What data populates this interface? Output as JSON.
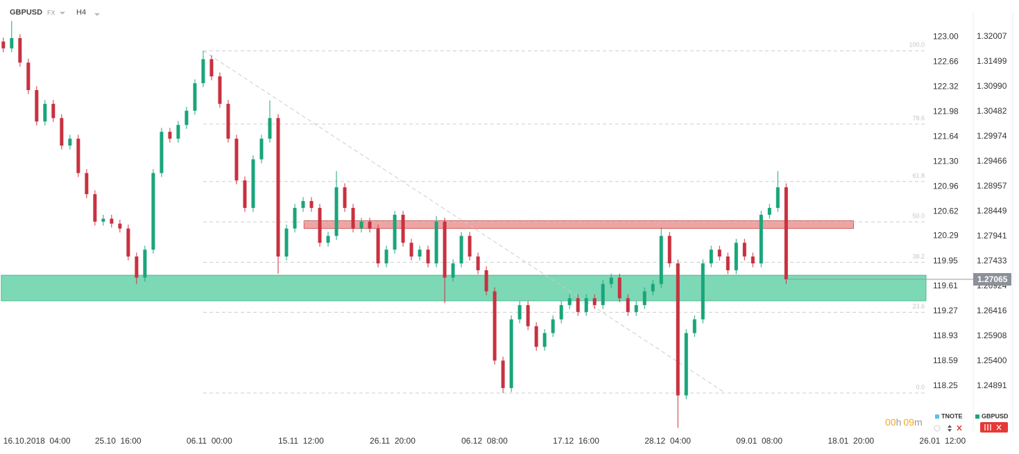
{
  "chart_data": {
    "type": "candlestick",
    "symbol": "GBPUSD",
    "market": "FX",
    "timeframe": "H4",
    "xlim": [
      -0.4,
      110.8
    ],
    "xticks": [
      {
        "value": 0,
        "label": "16.10.2018  04:00"
      },
      {
        "value": 11,
        "label": "25.10  16:00"
      },
      {
        "value": 22,
        "label": "06.11  00:00"
      },
      {
        "value": 33,
        "label": "15.11  12:00"
      },
      {
        "value": 44,
        "label": "26.11  20:00"
      },
      {
        "value": 55,
        "label": "06.12  08:00"
      },
      {
        "value": 66,
        "label": "17.12  16:00"
      },
      {
        "value": 77,
        "label": "28.12  04:00"
      },
      {
        "value": 88,
        "label": "09.01  08:00"
      },
      {
        "value": 99,
        "label": "18.01  20:00"
      },
      {
        "value": 110,
        "label": "26.01  12:00"
      }
    ],
    "ylim": [
      117.655,
      123.312
    ],
    "yticks": [
      {
        "value": 123,
        "label": "123.00"
      },
      122.66,
      122.32,
      121.98,
      121.64,
      {
        "value": 121.3,
        "label": "121.30"
      },
      120.96,
      120.62,
      120.29,
      119.95,
      119.61,
      119.27,
      118.93,
      118.59,
      118.25
    ],
    "y2lim": [
      1.24001,
      1.32473
    ],
    "y2ticks": [
      1.32007,
      1.31499,
      {
        "value": 1.3099,
        "label": "1.30990"
      },
      1.30482,
      1.29974,
      1.29466,
      1.28957,
      1.28449,
      1.27941,
      1.27433,
      1.26924,
      1.26416,
      1.25908,
      {
        "value": 1.254,
        "label": "1.25400"
      },
      1.24891
    ],
    "grid": false,
    "x": [
      0,
      1,
      2,
      3,
      4,
      5,
      6,
      7,
      8,
      9,
      10,
      11,
      12,
      13,
      14,
      15,
      16,
      17,
      18,
      19,
      20,
      21,
      22,
      23,
      24,
      25,
      26,
      27,
      28,
      29,
      30,
      31,
      32,
      33,
      34,
      35,
      36,
      37,
      38,
      39,
      40,
      41,
      42,
      43,
      44,
      45,
      46,
      47,
      48,
      49,
      50,
      51,
      52,
      53,
      54,
      55,
      56,
      57,
      58,
      59,
      60,
      61,
      62,
      63,
      64,
      65,
      66,
      67,
      68,
      69,
      70,
      71,
      72,
      73,
      74,
      75,
      76,
      77,
      78,
      79,
      80,
      81,
      82,
      83,
      84,
      85,
      86,
      87,
      88,
      89,
      90,
      91,
      92,
      93,
      94
    ],
    "series": [
      {
        "name": "GBPUSD",
        "axis": "y2",
        "color": "#1aa57a",
        "up_color": "#1aa57a",
        "down_color": "#c8313f",
        "open": [
          1.3191,
          1.3177,
          1.3198,
          1.3148,
          1.3092,
          1.3028,
          1.3064,
          1.3035,
          1.2979,
          1.2993,
          1.2923,
          1.288,
          1.2824,
          1.283,
          1.282,
          1.281,
          1.2753,
          1.271,
          1.2767,
          1.2923,
          1.3007,
          1.2993,
          1.3021,
          1.305,
          1.3106,
          1.3155,
          1.312,
          1.3064,
          1.2993,
          1.2908,
          1.2852,
          1.2951,
          1.2993,
          1.3035,
          1.2753,
          1.281,
          1.2852,
          1.2866,
          1.2852,
          1.2781,
          1.2795,
          1.2894,
          1.2852,
          1.281,
          1.2824,
          1.281,
          1.2739,
          1.2767,
          1.2838,
          1.2781,
          1.2753,
          1.2767,
          1.2739,
          1.2824,
          1.271,
          1.2739,
          1.2795,
          1.2753,
          1.2725,
          1.2682,
          1.2541,
          1.2485,
          1.2625,
          1.2654,
          1.2611,
          1.2569,
          1.2597,
          1.2625,
          1.2654,
          1.2668,
          1.264,
          1.2668,
          1.2654,
          1.2697,
          1.271,
          1.2668,
          1.264,
          1.2654,
          1.2682,
          1.2697,
          1.2795,
          1.2739,
          1.247,
          1.2597,
          1.2625,
          1.2739,
          1.2767,
          1.2753,
          1.2725,
          1.2781,
          1.2753,
          1.2739,
          1.2838,
          1.2852,
          1.2894
        ],
        "high": [
          1.3199,
          1.3233,
          1.3206,
          1.3156,
          1.31,
          1.3072,
          1.3072,
          1.3043,
          1.3001,
          1.3001,
          1.2931,
          1.2888,
          1.2838,
          1.2838,
          1.2828,
          1.2818,
          1.2761,
          1.2775,
          1.2931,
          1.3015,
          1.3015,
          1.3029,
          1.3058,
          1.3114,
          1.3172,
          1.3163,
          1.3128,
          1.3072,
          1.3001,
          1.2916,
          1.2959,
          1.3001,
          1.3071,
          1.3043,
          1.2818,
          1.286,
          1.2874,
          1.2874,
          1.286,
          1.2803,
          1.2927,
          1.2902,
          1.286,
          1.2832,
          1.2832,
          1.2818,
          1.2775,
          1.2846,
          1.2846,
          1.2789,
          1.2775,
          1.2775,
          1.2835,
          1.2832,
          1.2747,
          1.2803,
          1.2803,
          1.2761,
          1.2733,
          1.269,
          1.2549,
          1.2633,
          1.2662,
          1.2662,
          1.2619,
          1.2605,
          1.2633,
          1.2662,
          1.2676,
          1.2676,
          1.2676,
          1.2676,
          1.2705,
          1.2718,
          1.2718,
          1.2676,
          1.2662,
          1.269,
          1.2705,
          1.2812,
          1.2803,
          1.2747,
          1.2605,
          1.2633,
          1.2747,
          1.2775,
          1.2775,
          1.2761,
          1.2789,
          1.2789,
          1.2761,
          1.2846,
          1.286,
          1.2927,
          1.2902
        ],
        "low": [
          1.3169,
          1.3169,
          1.314,
          1.3084,
          1.302,
          1.302,
          1.3027,
          1.2971,
          1.2971,
          1.2915,
          1.2872,
          1.2816,
          1.2816,
          1.2812,
          1.2802,
          1.2745,
          1.2697,
          1.2702,
          1.2759,
          1.2915,
          1.2985,
          1.2985,
          1.3013,
          1.3042,
          1.3098,
          1.3112,
          1.3056,
          1.2985,
          1.29,
          1.2844,
          1.2844,
          1.2943,
          1.2985,
          1.2718,
          1.2745,
          1.2802,
          1.2844,
          1.2844,
          1.2773,
          1.2773,
          1.2787,
          1.2844,
          1.2802,
          1.2802,
          1.2802,
          1.2731,
          1.2731,
          1.2759,
          1.2773,
          1.2745,
          1.2745,
          1.2731,
          1.2731,
          1.2658,
          1.2702,
          1.2731,
          1.2745,
          1.2717,
          1.2674,
          1.2533,
          1.2475,
          1.2477,
          1.2617,
          1.2603,
          1.2561,
          1.2561,
          1.2589,
          1.2617,
          1.2646,
          1.2632,
          1.2632,
          1.2646,
          1.2646,
          1.2689,
          1.266,
          1.2632,
          1.2632,
          1.2646,
          1.2674,
          1.2689,
          1.2731,
          1.2404,
          1.2462,
          1.2589,
          1.2617,
          1.2731,
          1.2745,
          1.2717,
          1.2717,
          1.2745,
          1.2731,
          1.2731,
          1.283,
          1.2844,
          1.2697
        ],
        "close": [
          1.3177,
          1.3198,
          1.3148,
          1.3092,
          1.3028,
          1.3064,
          1.3035,
          1.2979,
          1.2993,
          1.2923,
          1.288,
          1.2824,
          1.283,
          1.282,
          1.281,
          1.2753,
          1.271,
          1.2767,
          1.2923,
          1.3007,
          1.2993,
          1.3021,
          1.305,
          1.3106,
          1.3155,
          1.312,
          1.3064,
          1.2993,
          1.2908,
          1.2852,
          1.2951,
          1.2993,
          1.3035,
          1.2753,
          1.281,
          1.2852,
          1.2866,
          1.2852,
          1.2781,
          1.2795,
          1.2894,
          1.2852,
          1.281,
          1.2824,
          1.281,
          1.2739,
          1.2767,
          1.2838,
          1.2781,
          1.2753,
          1.2767,
          1.2739,
          1.2824,
          1.271,
          1.2739,
          1.2795,
          1.2753,
          1.2725,
          1.2682,
          1.2541,
          1.2485,
          1.2625,
          1.2654,
          1.2611,
          1.2569,
          1.2597,
          1.2625,
          1.2654,
          1.2668,
          1.264,
          1.2668,
          1.2654,
          1.2697,
          1.271,
          1.2668,
          1.264,
          1.2654,
          1.2682,
          1.2697,
          1.2795,
          1.2739,
          1.247,
          1.2597,
          1.2625,
          1.2739,
          1.2767,
          1.2753,
          1.2725,
          1.2781,
          1.2753,
          1.2739,
          1.2838,
          1.2852,
          1.2894,
          1.27065
        ]
      }
    ],
    "secondary": {
      "name": "TNOTE",
      "color": "#5bc0eb"
    },
    "zones": [
      {
        "color": "#efa3a3",
        "border": "#c0504d",
        "x": [
          36.1,
          102.1
        ],
        "y": [
          1.281,
          1.2826
        ]
      },
      {
        "color": "#7dd8b6",
        "border": "#3fae86",
        "x": [
          -0.25,
          110.8
        ],
        "y": [
          1.26627,
          1.27149
        ]
      }
    ],
    "fibonacci": {
      "x": [
        24,
        86.7
      ],
      "y": [
        1.3172,
        1.2475
      ],
      "levels": [
        {
          "value": 100,
          "label": "100.0"
        },
        78.6,
        61.8,
        {
          "value": 50,
          "label": "50.0"
        },
        38.2,
        23.6,
        {
          "value": 0,
          "label": "0.0"
        }
      ]
    },
    "timer": [
      "00",
      "h",
      "09",
      "m"
    ]
  }
}
